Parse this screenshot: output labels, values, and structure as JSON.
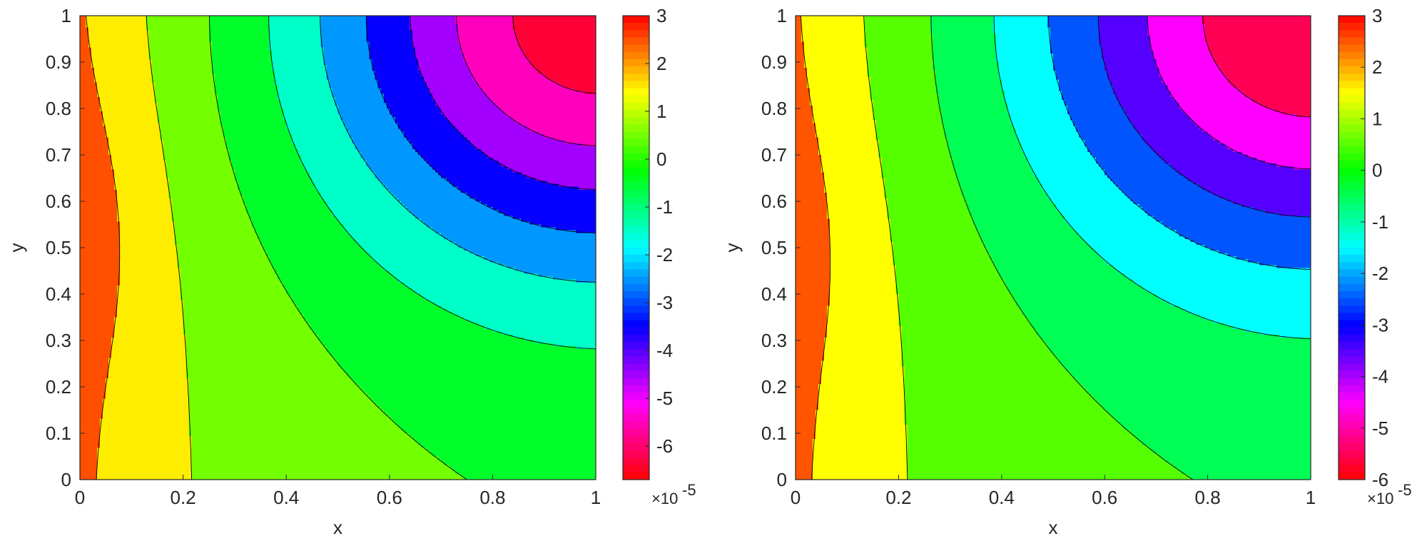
{
  "chart_data": [
    {
      "type": "contour",
      "xlabel": "x",
      "ylabel": "y",
      "xlim": [
        0,
        1
      ],
      "ylim": [
        0,
        1
      ],
      "xticks": [
        "0",
        "0.2",
        "0.4",
        "0.6",
        "0.8",
        "1"
      ],
      "yticks": [
        "0",
        "0.1",
        "0.2",
        "0.3",
        "0.4",
        "0.5",
        "0.6",
        "0.7",
        "0.8",
        "0.9",
        "1"
      ],
      "grid": false,
      "colorbar": {
        "range": [
          -6.7,
          3
        ],
        "ticks": [
          "3",
          "2",
          "1",
          "0",
          "-1",
          "-2",
          "-3",
          "-4",
          "-5",
          "-6"
        ],
        "tick_values": [
          3,
          2,
          1,
          0,
          -1,
          -2,
          -3,
          -4,
          -5,
          -6
        ],
        "multiplier": "×10",
        "exponent": "-5",
        "colormap": "hsv",
        "position": "right"
      },
      "field": {
        "left_peak": 3.0,
        "left_center_y": 0.55,
        "corner_min": -6.7,
        "corner": [
          1,
          1
        ]
      },
      "contour_levels": [
        2,
        1,
        0,
        -1,
        -2,
        -3,
        -4,
        -5,
        -6
      ]
    },
    {
      "type": "contour",
      "xlabel": "x",
      "ylabel": "y",
      "xlim": [
        0,
        1
      ],
      "ylim": [
        0,
        1
      ],
      "xticks": [
        "0",
        "0.2",
        "0.4",
        "0.6",
        "0.8",
        "1"
      ],
      "yticks": [
        "0",
        "0.1",
        "0.2",
        "0.3",
        "0.4",
        "0.5",
        "0.6",
        "0.7",
        "0.8",
        "0.9",
        "1"
      ],
      "grid": false,
      "colorbar": {
        "range": [
          -6,
          3
        ],
        "ticks": [
          "3",
          "2",
          "1",
          "0",
          "-1",
          "-2",
          "-3",
          "-4",
          "-5",
          "-6"
        ],
        "tick_values": [
          3,
          2,
          1,
          0,
          -1,
          -2,
          -3,
          -4,
          -5,
          -6
        ],
        "multiplier": "×10",
        "exponent": "-5",
        "colormap": "hsv",
        "position": "right"
      },
      "field": {
        "left_peak": 2.6,
        "left_center_y": 0.53,
        "corner_min": -6.0,
        "corner": [
          1,
          1
        ]
      },
      "contour_levels": [
        2,
        1,
        0,
        -1,
        -2,
        -3,
        -4,
        -5
      ]
    }
  ]
}
